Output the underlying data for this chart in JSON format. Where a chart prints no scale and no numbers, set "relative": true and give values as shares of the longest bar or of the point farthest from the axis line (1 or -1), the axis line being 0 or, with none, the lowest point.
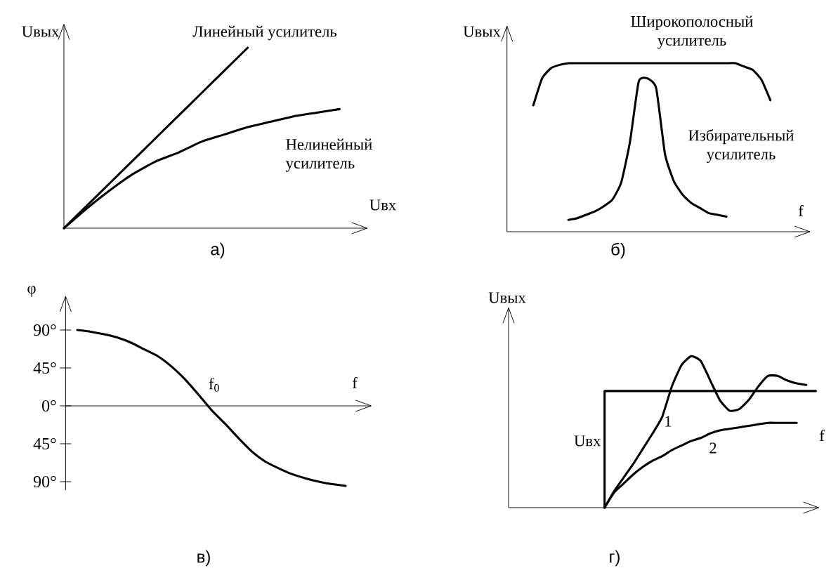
{
  "chart_data": [
    {
      "type": "line",
      "relative": true,
      "xlabel": "Uвх",
      "ylabel": "Uвых",
      "annotations": [
        "а)"
      ],
      "categories": [
        null,
        null,
        null,
        null,
        null,
        null,
        null,
        null,
        null,
        null,
        null,
        null,
        null
      ],
      "series": [
        {
          "name": "Линейный усилитель",
          "color": "#000000",
          "values": [
            0,
            0.125,
            0.25,
            0.375,
            0.5,
            0.625,
            0.75,
            0.875,
            1,
            null,
            null,
            null,
            null
          ]
        },
        {
          "name": "Нелинейный усилитель",
          "color": "#000000",
          "values": [
            0,
            0.11,
            0.21,
            0.3,
            0.37,
            0.42,
            0.48,
            0.52,
            0.56,
            0.59,
            0.62,
            0.64,
            0.66
          ]
        }
      ]
    },
    {
      "type": "line",
      "relative": true,
      "xlabel": "f",
      "ylabel": "Uвых",
      "annotations": [
        "б)"
      ],
      "categories": [
        null,
        null,
        null,
        null,
        null,
        null,
        null,
        null,
        null,
        null,
        null,
        null,
        null,
        null,
        null,
        null,
        null,
        null,
        null,
        null,
        null,
        null,
        null,
        null,
        null,
        null,
        null,
        null,
        null,
        null,
        null,
        null,
        null,
        null,
        null
      ],
      "series": [
        {
          "name": "Широкополосный усилитель",
          "color": "#000000",
          "values": [
            null,
            null,
            null,
            0.75,
            0.91,
            0.97,
            0.99,
            1,
            1,
            1,
            1,
            1,
            1,
            1,
            1,
            1,
            1,
            1,
            1,
            1,
            1,
            1,
            1,
            1,
            1,
            1,
            1,
            0.98,
            0.96,
            0.9,
            0.78,
            null,
            null,
            null,
            null
          ]
        },
        {
          "name": "Избирательный усилитель",
          "color": "#000000",
          "values": [
            null,
            null,
            null,
            null,
            null,
            null,
            null,
            0.07,
            0.08,
            0.1,
            0.12,
            0.15,
            0.19,
            0.29,
            0.53,
            0.89,
            0.91,
            0.85,
            0.46,
            0.3,
            0.22,
            0.17,
            0.14,
            0.11,
            0.1,
            0.09,
            null,
            null,
            null,
            null,
            null,
            null,
            null,
            null,
            null
          ]
        }
      ]
    },
    {
      "type": "line",
      "xlabel": "f",
      "ylabel": "φ",
      "annotations": [
        "f$_{0}$",
        "в)"
      ],
      "categories": [
        null,
        null,
        null,
        null,
        null,
        null,
        null,
        null,
        null,
        null,
        null,
        null,
        null,
        null,
        null,
        null,
        null,
        null,
        null,
        null,
        null
      ],
      "ylim": [
        -100,
        130
      ],
      "yticks": [
        {
          "value": 90,
          "label": "90°"
        },
        {
          "value": 45,
          "label": "45°"
        },
        {
          "value": 0,
          "label": "0°"
        },
        {
          "value": -45,
          "label": "45°"
        },
        {
          "value": -90,
          "label": "90°"
        }
      ],
      "series": [
        {
          "color": "#000000",
          "values": [
            90,
            88,
            85,
            81,
            75,
            67,
            59,
            47,
            32,
            14,
            -5,
            -21,
            -38,
            -54,
            -66,
            -74,
            -81,
            -86,
            -90,
            -93,
            -95
          ]
        }
      ]
    },
    {
      "type": "line",
      "relative": true,
      "xlabel": "f",
      "ylabel": "Uвых",
      "annotations": [
        "г)"
      ],
      "categories": [
        null,
        null,
        null,
        null,
        null,
        null,
        null,
        null,
        null,
        null,
        null,
        null,
        null,
        null,
        null,
        null,
        null,
        null,
        null,
        null,
        null,
        null,
        null,
        null,
        null,
        null,
        null,
        null,
        null,
        null,
        null,
        null,
        null
      ],
      "series": [
        {
          "name": "Uвх",
          "type": "step",
          "color": "#000000",
          "values": [
            null,
            null,
            null,
            null,
            null,
            null,
            null,
            null,
            null,
            null,
            0,
            0.77,
            0.77,
            0.77,
            0.77,
            0.77,
            0.77,
            0.77,
            0.77,
            0.77,
            0.77,
            0.77,
            0.77,
            0.77,
            0.77,
            0.77,
            0.77,
            0.77,
            0.77,
            0.77,
            0.77,
            0.77,
            0.77
          ]
        },
        {
          "name": "1",
          "color": "#000000",
          "values": [
            null,
            null,
            null,
            null,
            null,
            null,
            null,
            null,
            null,
            null,
            0,
            0.11,
            0.2,
            0.29,
            0.39,
            0.49,
            0.6,
            0.8,
            0.94,
            1.0,
            0.97,
            0.84,
            0.71,
            0.64,
            0.65,
            0.71,
            0.8,
            0.87,
            0.87,
            0.84,
            0.82,
            0.81,
            null
          ]
        },
        {
          "name": "2",
          "color": "#000000",
          "values": [
            null,
            null,
            null,
            null,
            null,
            null,
            null,
            null,
            null,
            null,
            0,
            0.1,
            0.16,
            0.22,
            0.27,
            0.31,
            0.34,
            0.38,
            0.41,
            0.44,
            0.46,
            0.49,
            0.51,
            0.52,
            0.53,
            0.54,
            0.55,
            0.56,
            0.56,
            0.56,
            0.56,
            null,
            null
          ]
        }
      ]
    }
  ]
}
